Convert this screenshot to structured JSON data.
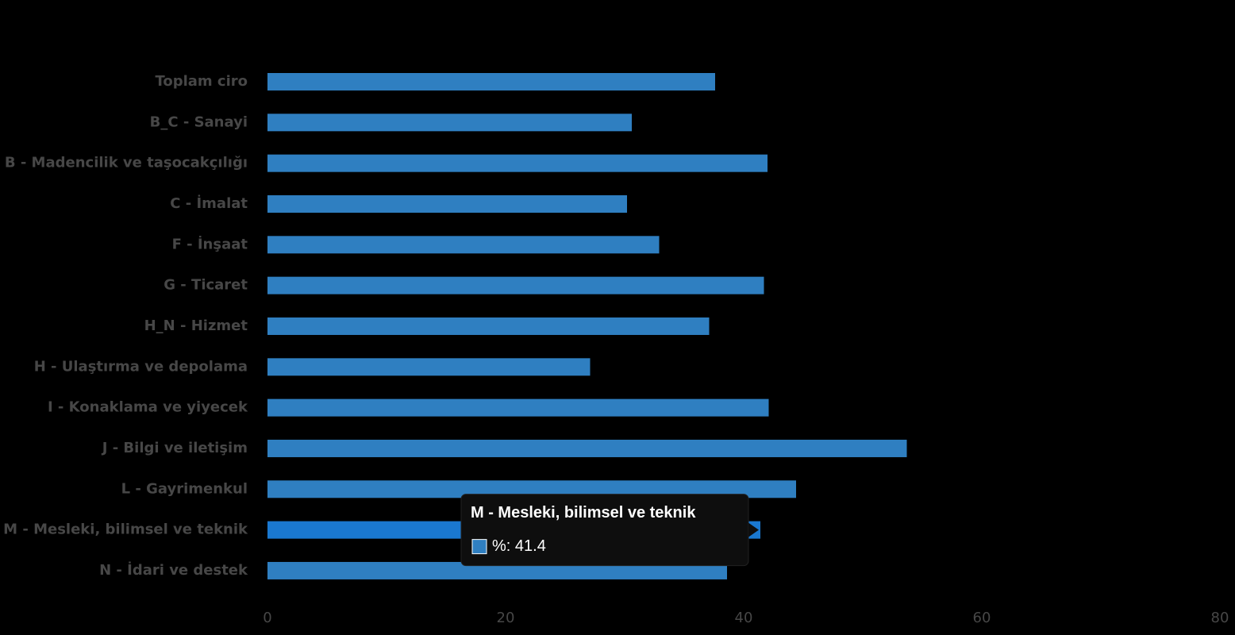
{
  "chart_data": {
    "type": "bar",
    "orientation": "horizontal",
    "categories": [
      "Toplam ciro",
      "B_C - Sanayi",
      "B - Madencilik ve taşocakçılığı",
      "C - İmalat",
      "F - İnşaat",
      "G - Ticaret",
      "H_N - Hizmet",
      "H - Ulaştırma ve depolama",
      "I - Konaklama ve yiyecek",
      "J - Bilgi ve iletişim",
      "L - Gayrimenkul",
      "M - Mesleki, bilimsel ve teknik",
      "N - İdari ve destek"
    ],
    "series": [
      {
        "name": "%",
        "color": "#2f7fc1",
        "values": [
          37.6,
          30.6,
          42.0,
          30.2,
          32.9,
          41.7,
          37.1,
          27.1,
          42.1,
          53.7,
          44.4,
          41.4,
          38.6
        ]
      }
    ],
    "xlim": [
      0,
      80
    ],
    "xticks": [
      0,
      20,
      40,
      60,
      80
    ],
    "highlight": {
      "index": 11,
      "color": "#1a78d0",
      "tooltip_text": "%: 41.4"
    }
  }
}
